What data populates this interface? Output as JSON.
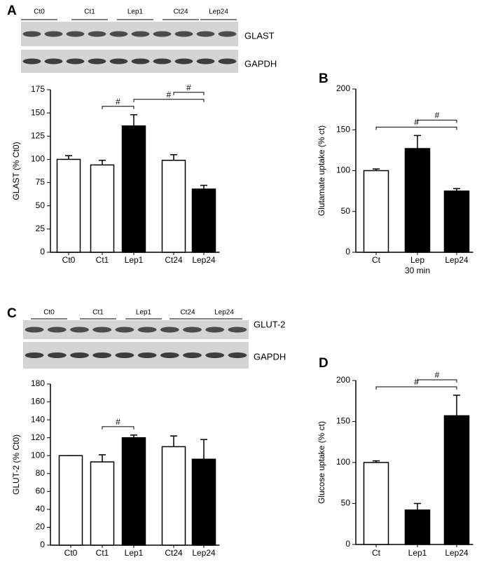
{
  "chart_data": [
    {
      "type": "bar",
      "panel": "A",
      "blot": {
        "lanes": [
          "Ct0",
          "Ct1",
          "Lep1",
          "Ct24",
          "Lep24"
        ],
        "bands": [
          "GLAST",
          "GAPDH"
        ]
      },
      "ylabel": "GLAST (% Ct0)",
      "categories": [
        "Ct0",
        "Ct1",
        "Lep1",
        "Ct24",
        "Lep24"
      ],
      "values": [
        100,
        94,
        136,
        99,
        68
      ],
      "errors": [
        4,
        5,
        12,
        6,
        4
      ],
      "colors": [
        "#ffffff",
        "#ffffff",
        "#000000",
        "#ffffff",
        "#000000"
      ],
      "ylim": [
        0,
        175
      ],
      "yticks": [
        0,
        25,
        50,
        75,
        100,
        125,
        150,
        175
      ],
      "annotations": [
        {
          "text": "#",
          "from": "Ct1",
          "to": "Lep1"
        },
        {
          "text": "#",
          "from": "Lep1",
          "to": "Lep24"
        },
        {
          "text": "#",
          "from": "Ct24",
          "to": "Lep24"
        }
      ]
    },
    {
      "type": "bar",
      "panel": "B",
      "ylabel": "Glutamate uptake (% ct)",
      "categories": [
        "Ct",
        "Lep",
        "Lep24"
      ],
      "category_notes": [
        null,
        "30 min",
        null
      ],
      "values": [
        100,
        127,
        75
      ],
      "errors": [
        2,
        16,
        3
      ],
      "colors": [
        "#ffffff",
        "#000000",
        "#000000"
      ],
      "ylim": [
        0,
        200
      ],
      "yticks": [
        0,
        50,
        100,
        150,
        200
      ],
      "annotations": [
        {
          "text": "#",
          "from": "Ct",
          "to": "Lep24"
        },
        {
          "text": "#",
          "from": "Lep",
          "to": "Lep24"
        }
      ]
    },
    {
      "type": "bar",
      "panel": "C",
      "blot": {
        "lanes": [
          "Ct0",
          "Ct1",
          "Lep1",
          "Ct24",
          "Lep24"
        ],
        "bands": [
          "GLUT-2",
          "GAPDH"
        ]
      },
      "ylabel": "GLUT-2 (% Ct0)",
      "categories": [
        "Ct0",
        "Ct1",
        "Lep1",
        "Ct24",
        "Lep24"
      ],
      "values": [
        100,
        93,
        120,
        110,
        96
      ],
      "errors": [
        0,
        8,
        3,
        12,
        22
      ],
      "colors": [
        "#ffffff",
        "#ffffff",
        "#000000",
        "#ffffff",
        "#000000"
      ],
      "ylim": [
        0,
        180
      ],
      "yticks": [
        0,
        20,
        40,
        60,
        80,
        100,
        120,
        140,
        160,
        180
      ],
      "annotations": [
        {
          "text": "#",
          "from": "Ct1",
          "to": "Lep1"
        }
      ]
    },
    {
      "type": "bar",
      "panel": "D",
      "ylabel": "Glucose uptake (% ct)",
      "categories": [
        "Ct",
        "Lep1",
        "Lep24"
      ],
      "values": [
        100,
        42,
        157
      ],
      "errors": [
        2,
        8,
        25
      ],
      "colors": [
        "#ffffff",
        "#000000",
        "#000000"
      ],
      "ylim": [
        0,
        200
      ],
      "yticks": [
        0,
        50,
        100,
        150,
        200
      ],
      "annotations": [
        {
          "text": "#",
          "from": "Ct",
          "to": "Lep24"
        },
        {
          "text": "#",
          "from": "Lep1",
          "to": "Lep24"
        }
      ]
    }
  ]
}
